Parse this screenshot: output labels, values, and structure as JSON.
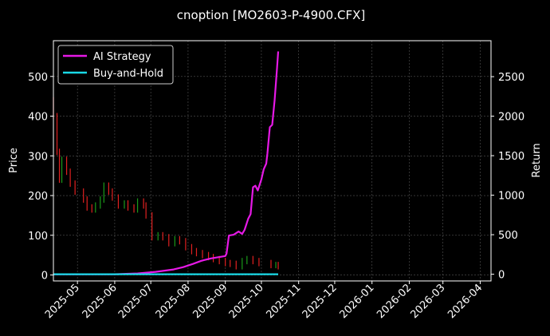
{
  "colors": {
    "background": "#000000",
    "text": "#ffffff",
    "grid": "#555555",
    "candle_up": "#1a9a1a",
    "candle_down": "#e02020",
    "ai_strategy": "#e619e6",
    "buy_and_hold": "#19d9e6"
  },
  "chart_data": {
    "type": "line",
    "title": "cnoption [MO2603-P-4900.CFX]",
    "grid": true,
    "legend_position": "top-left",
    "x_axis": {
      "type": "date",
      "range": [
        "2025-04-11",
        "2026-04-10"
      ],
      "ticks": [
        "2025-05",
        "2025-06",
        "2025-07",
        "2025-08",
        "2025-09",
        "2025-10",
        "2025-11",
        "2025-12",
        "2026-01",
        "2026-02",
        "2026-03",
        "2026-04"
      ]
    },
    "y_left": {
      "label": "Price",
      "range": [
        -15,
        590
      ],
      "ticks": [
        0,
        100,
        200,
        300,
        400,
        500
      ]
    },
    "y_right": {
      "label": "Return",
      "range": [
        -85,
        2955
      ],
      "ticks": [
        0,
        500,
        1000,
        1500,
        2000,
        2500
      ]
    },
    "candles_daily_close": {
      "x": [
        "2025-04-11",
        "2025-04-14",
        "2025-04-16",
        "2025-04-18",
        "2025-04-22",
        "2025-04-25",
        "2025-04-29",
        "2025-05-06",
        "2025-05-09",
        "2025-05-13",
        "2025-05-16",
        "2025-05-20",
        "2025-05-23",
        "2025-05-27",
        "2025-05-30",
        "2025-06-04",
        "2025-06-09",
        "2025-06-12",
        "2025-06-17",
        "2025-06-20",
        "2025-06-25",
        "2025-06-27",
        "2025-07-02",
        "2025-07-07",
        "2025-07-11",
        "2025-07-16",
        "2025-07-21",
        "2025-07-25",
        "2025-07-30",
        "2025-08-04",
        "2025-08-08",
        "2025-08-13",
        "2025-08-18",
        "2025-08-22",
        "2025-08-27",
        "2025-09-01",
        "2025-09-05",
        "2025-09-10",
        "2025-09-15",
        "2025-09-19",
        "2025-09-24",
        "2025-09-29",
        "2025-10-09",
        "2025-10-13",
        "2025-10-15"
      ],
      "values": [
        400,
        310,
        240,
        290,
        260,
        230,
        210,
        190,
        170,
        165,
        175,
        190,
        225,
        210,
        195,
        175,
        180,
        170,
        165,
        185,
        175,
        150,
        95,
        100,
        95,
        80,
        90,
        85,
        70,
        60,
        55,
        50,
        45,
        40,
        35,
        30,
        28,
        22,
        35,
        40,
        35,
        30,
        25,
        25,
        22
      ]
    },
    "series": [
      {
        "name": "AI Strategy",
        "axis": "right",
        "x": [
          "2025-04-11",
          "2025-05-01",
          "2025-06-01",
          "2025-06-20",
          "2025-07-05",
          "2025-07-20",
          "2025-07-28",
          "2025-08-05",
          "2025-08-12",
          "2025-08-20",
          "2025-08-28",
          "2025-09-01",
          "2025-09-02",
          "2025-09-04",
          "2025-09-08",
          "2025-09-12",
          "2025-09-15",
          "2025-09-17",
          "2025-09-20",
          "2025-09-22",
          "2025-09-24",
          "2025-09-26",
          "2025-09-28",
          "2025-10-01",
          "2025-10-03",
          "2025-10-05",
          "2025-10-06",
          "2025-10-08",
          "2025-10-10",
          "2025-10-12",
          "2025-10-13",
          "2025-10-14",
          "2025-10-15"
        ],
        "values": [
          0,
          0,
          0,
          10,
          30,
          60,
          90,
          130,
          170,
          200,
          220,
          230,
          260,
          490,
          500,
          540,
          510,
          560,
          700,
          760,
          1100,
          1120,
          1060,
          1200,
          1330,
          1400,
          1530,
          1860,
          1890,
          2200,
          2400,
          2600,
          2820
        ]
      },
      {
        "name": "Buy-and-Hold",
        "axis": "right",
        "x": [
          "2025-04-11",
          "2025-10-15"
        ],
        "values": [
          0,
          0
        ]
      }
    ]
  }
}
